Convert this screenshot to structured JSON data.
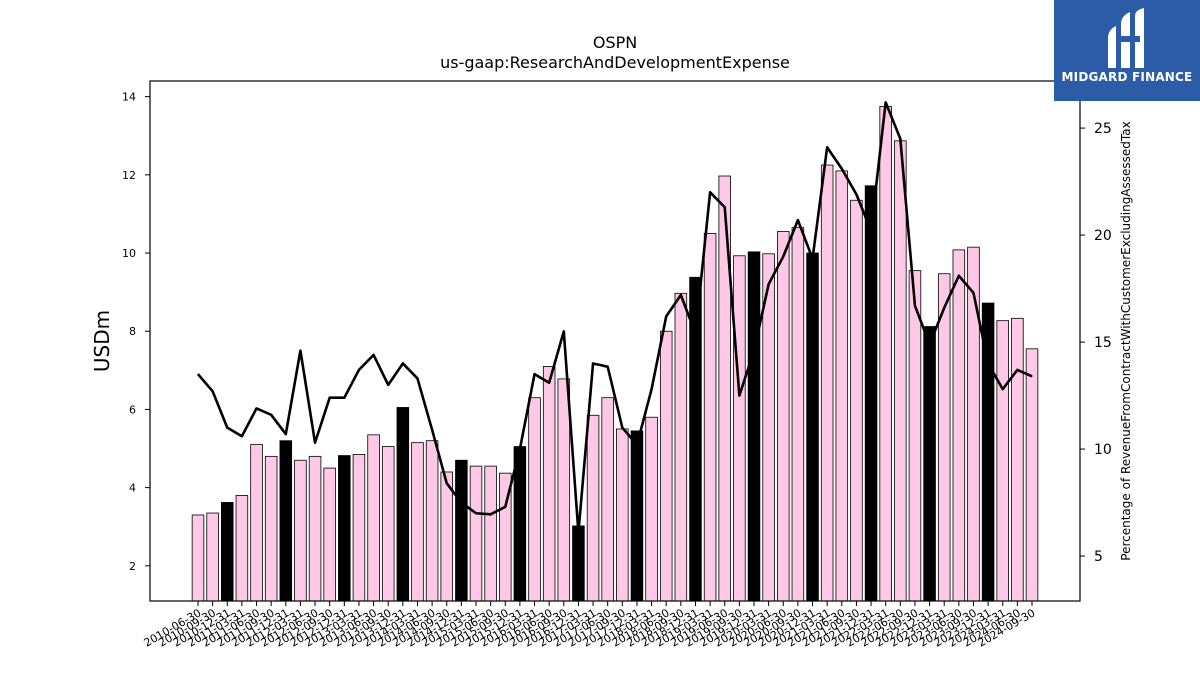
{
  "chart_data": {
    "type": "bar",
    "title": "OSPN",
    "subtitle": "us-gaap:ResearchAndDevelopmentExpense",
    "ylabel": "USDm",
    "y2label": "Percentage of RevenueFromContractWithCustomerExcludingAssessedTax",
    "ylim": [
      1.1,
      14.4
    ],
    "y2lim": [
      2.9,
      27.2
    ],
    "yticks": [
      2,
      4,
      6,
      8,
      10,
      12,
      14
    ],
    "y2ticks": [
      5,
      10,
      15,
      20,
      25
    ],
    "categories": [
      "2010-06-30",
      "2010-09-30",
      "2010-12-31",
      "2011-03-31",
      "2011-06-30",
      "2011-09-30",
      "2011-12-31",
      "2012-03-31",
      "2012-06-30",
      "2012-09-30",
      "2012-12-31",
      "2013-03-31",
      "2013-06-30",
      "2013-09-30",
      "2013-12-31",
      "2014-03-31",
      "2014-06-30",
      "2014-09-30",
      "2014-12-31",
      "2015-03-31",
      "2015-06-30",
      "2015-09-30",
      "2015-12-31",
      "2016-03-31",
      "2016-06-30",
      "2016-09-30",
      "2016-12-31",
      "2017-03-31",
      "2017-06-30",
      "2017-09-30",
      "2017-12-31",
      "2018-03-31",
      "2018-06-30",
      "2018-09-30",
      "2018-12-31",
      "2019-03-31",
      "2019-06-30",
      "2019-09-30",
      "2019-12-31",
      "2020-03-31",
      "2020-06-30",
      "2020-09-30",
      "2020-12-31",
      "2021-03-31",
      "2021-06-30",
      "2021-09-30",
      "2021-12-31",
      "2022-03-31",
      "2022-06-30",
      "2022-09-30",
      "2022-12-31",
      "2023-03-31",
      "2023-06-30",
      "2023-09-30",
      "2023-12-31",
      "2024-03-31",
      "2024-06-30",
      "2024-09-30"
    ],
    "xtick_labels": [
      "2010-06-30",
      "2010-09-30",
      "2010-12-31",
      "2011-03-31",
      "2011-06-30",
      "2011-09-30",
      "2011-12-31",
      "2012-03-31",
      "2012-06-30",
      "2012-09-30",
      "2012-12-31",
      "2013-03-31",
      "2013-06-30",
      "2013-09-30",
      "2013-12-31",
      "2014-03-31",
      "2014-06-30",
      "2014-09-30",
      "2014-12-31",
      "2015-03-31",
      "2015-06-30",
      "2015-09-30",
      "2015-12-31",
      "2016-03-31",
      "2016-06-30",
      "2016-09-30",
      "2016-12-31",
      "2017-03-31",
      "2017-06-30",
      "2017-09-30",
      "2017-12-31",
      "2018-03-31",
      "2018-06-30",
      "2018-09-30",
      "2018-12-31",
      "2019-03-31",
      "2019-06-30",
      "2019-09-30",
      "2019-12-31",
      "2020-03-31",
      "2020-06-30",
      "2020-09-30",
      "2020-12-31",
      "2021-03-31",
      "2021-06-30",
      "2021-09-30",
      "2021-12-31",
      "2022-03-31",
      "2022-06-30",
      "2022-09-30",
      "2022-12-31",
      "2023-03-31",
      "2023-06-30",
      "2023-09-30",
      "2023-12-31",
      "2024-03-31",
      "2024-06-30",
      "2024-09-30"
    ],
    "series": [
      {
        "type": "bar",
        "axis": "left",
        "values": [
          3.3,
          3.35,
          3.62,
          3.8,
          5.1,
          4.8,
          5.2,
          4.7,
          4.8,
          4.5,
          4.82,
          4.85,
          5.35,
          5.05,
          6.05,
          5.15,
          5.2,
          4.4,
          4.7,
          4.55,
          4.55,
          4.37,
          5.05,
          6.3,
          7.1,
          6.78,
          3.02,
          5.85,
          6.3,
          5.5,
          5.45,
          5.8,
          8.0,
          8.97,
          9.38,
          10.5,
          11.97,
          9.93,
          10.03,
          9.98,
          10.55,
          10.65,
          10.0,
          12.25,
          12.1,
          11.35,
          11.72,
          13.75,
          12.87,
          9.55,
          8.12,
          9.47,
          10.08,
          10.15,
          8.72,
          8.27,
          8.33,
          7.55
        ],
        "highlight": [
          false,
          false,
          true,
          false,
          false,
          false,
          true,
          false,
          false,
          false,
          true,
          false,
          false,
          false,
          true,
          false,
          false,
          false,
          true,
          false,
          false,
          false,
          true,
          false,
          false,
          false,
          true,
          false,
          false,
          false,
          true,
          false,
          false,
          false,
          true,
          false,
          false,
          false,
          true,
          false,
          false,
          false,
          true,
          false,
          false,
          false,
          true,
          false,
          false,
          false,
          true,
          false,
          false,
          false,
          true,
          false,
          false,
          false
        ]
      },
      {
        "type": "line",
        "axis": "right",
        "values": [
          13.5,
          12.7,
          11.0,
          10.6,
          11.9,
          11.6,
          10.7,
          14.6,
          10.3,
          12.4,
          12.4,
          13.7,
          14.4,
          13.0,
          14.0,
          13.3,
          10.9,
          8.4,
          7.5,
          7.0,
          6.95,
          7.3,
          10.0,
          13.5,
          13.1,
          15.5,
          6.1,
          14.0,
          13.85,
          11.0,
          10.2,
          12.8,
          16.2,
          17.2,
          15.4,
          22.0,
          21.3,
          12.5,
          14.6,
          17.7,
          19.0,
          20.7,
          18.9,
          24.1,
          23.1,
          21.9,
          20.2,
          26.2,
          24.5,
          16.7,
          14.9,
          16.6,
          18.1,
          17.3,
          14.0,
          12.8,
          13.7,
          13.4
        ]
      }
    ],
    "colors": {
      "bar": "#ffc8e4",
      "bar_highlight": "#000000",
      "bar_edge": "#000000",
      "line": "#000000"
    },
    "grid": false,
    "legend": "none"
  },
  "logo": {
    "text": "MIDGARD FINANCE",
    "bg": "#2c5ca8"
  }
}
